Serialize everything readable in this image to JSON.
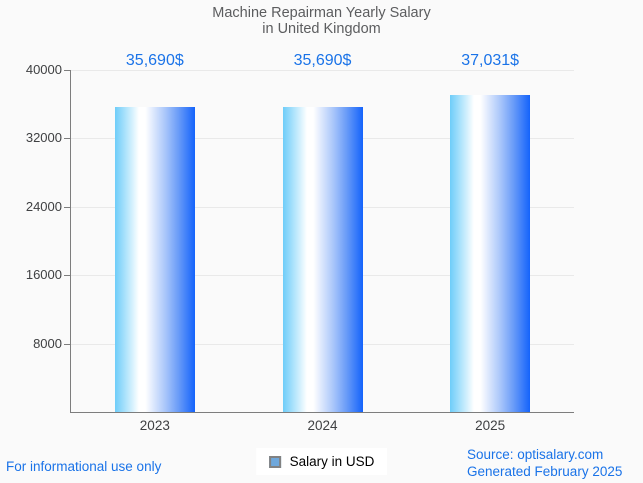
{
  "title": {
    "line1": "Machine Repairman Yearly Salary",
    "line2": "in United Kingdom"
  },
  "chart_data": {
    "type": "bar",
    "title": "Machine Repairman Yearly Salary in United Kingdom",
    "categories": [
      "2023",
      "2024",
      "2025"
    ],
    "values": [
      35690,
      35690,
      37031
    ],
    "value_labels": [
      "35,690$",
      "35,690$",
      "37,031$"
    ],
    "series": [
      {
        "name": "Salary in USD",
        "values": [
          35690,
          35690,
          37031
        ]
      }
    ],
    "xlabel": "",
    "ylabel": "",
    "ylim": [
      0,
      40000
    ],
    "yticks": [
      8000,
      16000,
      24000,
      32000,
      40000
    ],
    "ytick_labels": [
      "8000",
      "16000",
      "24000",
      "32000",
      "40000"
    ],
    "grid": true,
    "legend_position": "bottom"
  },
  "legend": {
    "label": "Salary in USD"
  },
  "footer": {
    "left": "For informational use only",
    "source": "Source: optisalary.com",
    "generated": "Generated February 2025"
  },
  "colors": {
    "background": "#fafafa",
    "title": "#5c5d5f",
    "axis_label": "#3f4042",
    "axis_line": "#7d7d7d",
    "gridline": "#e9e9e9",
    "value_label": "#1a73e8",
    "footer": "#1a73e8",
    "legend_marker_fill": "#6fa8dc",
    "legend_marker_border": "#828282",
    "bar_left": "#6ecdf9",
    "bar_mid": "#ffffff",
    "bar_right": "#1463fb"
  }
}
